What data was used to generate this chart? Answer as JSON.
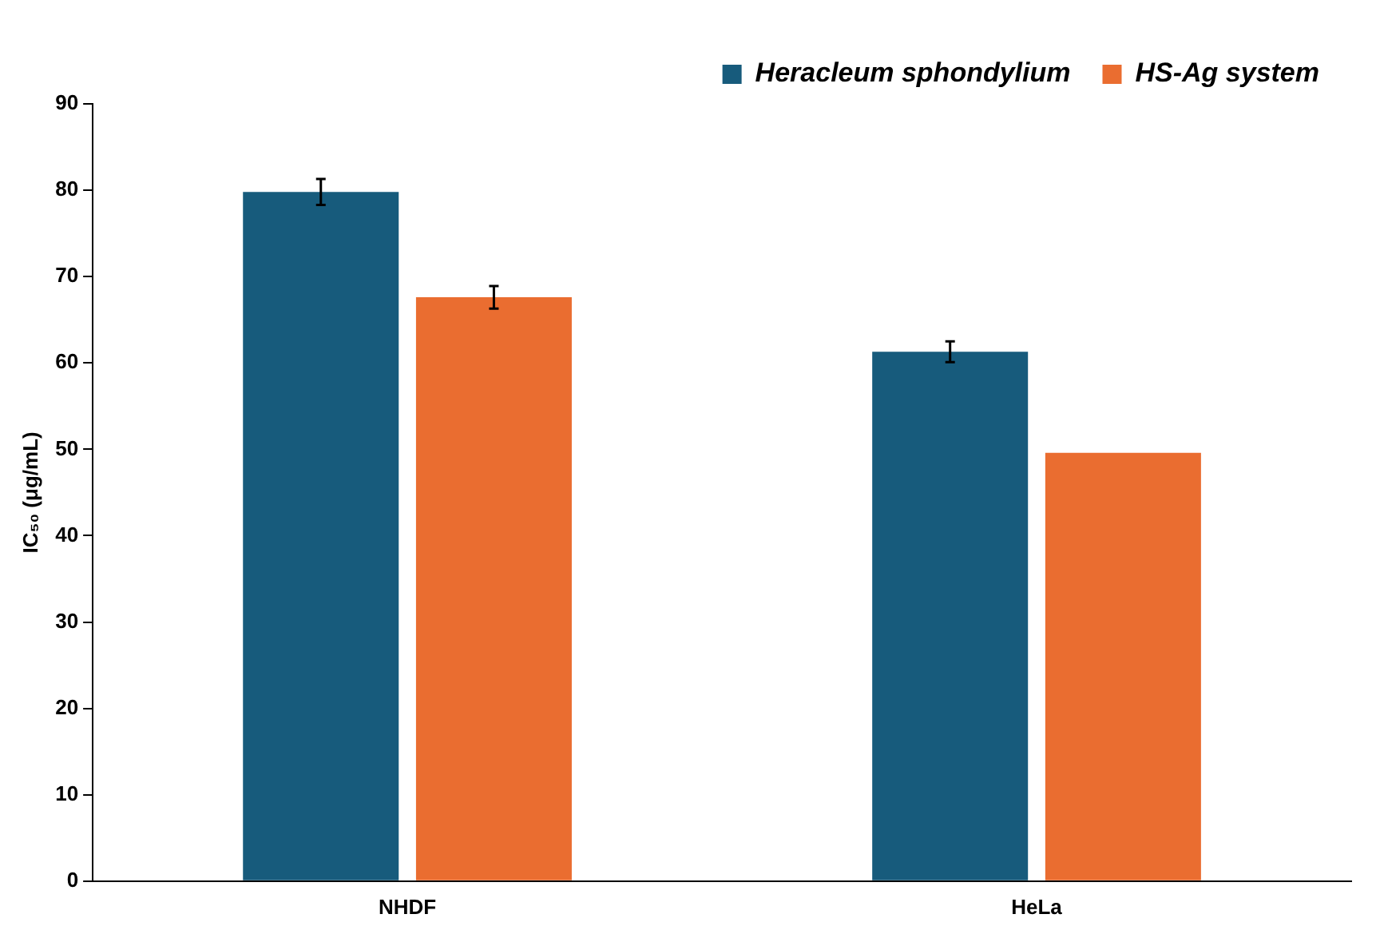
{
  "chart_data": {
    "type": "bar",
    "ylabel": "IC₅₀ (μg/mL)",
    "categories": [
      "NHDF",
      "HeLa"
    ],
    "series": [
      {
        "name": "Heracleum sphondylium",
        "color": "#175b7c",
        "values": [
          79.8,
          61.3
        ],
        "errors": [
          1.5,
          1.2
        ]
      },
      {
        "name": "HS-Ag system",
        "color": "#ea6d30",
        "values": [
          67.6,
          49.6
        ],
        "errors": [
          1.3,
          null
        ]
      }
    ],
    "ylim": [
      0,
      90
    ],
    "yticks": [
      0,
      10,
      20,
      30,
      40,
      50,
      60,
      70,
      80,
      90
    ],
    "grid": false,
    "legend": "top right"
  }
}
